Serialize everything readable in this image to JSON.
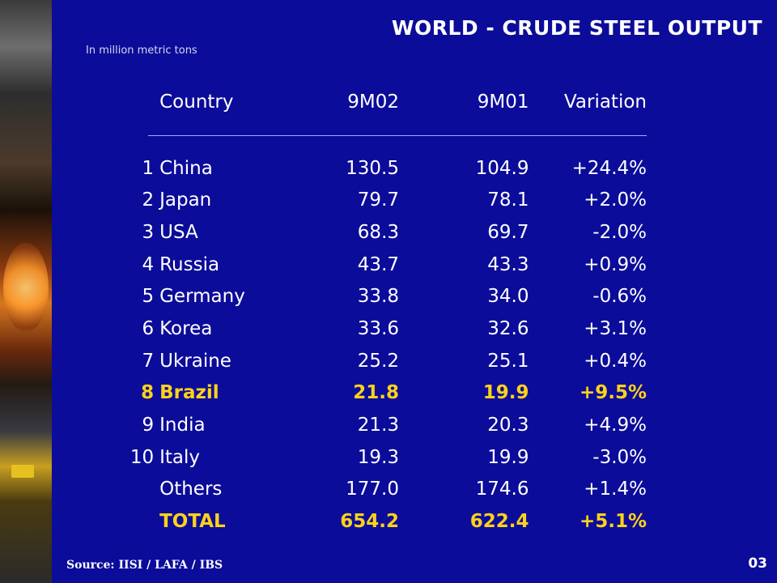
{
  "slide": {
    "title": "WORLD - CRUDE STEEL OUTPUT",
    "subtitle": "In million metric tons",
    "source": "Source: IISI / LAFA / IBS",
    "page_number": "03"
  },
  "table": {
    "headers": [
      "Country",
      "9M02",
      "9M01",
      "Variation"
    ],
    "rows": [
      {
        "rank": "1",
        "country": "China",
        "m02": "130.5",
        "m01": "104.9",
        "variation": "+24.4%"
      },
      {
        "rank": "2",
        "country": "Japan",
        "m02": "79.7",
        "m01": "78.1",
        "variation": "+2.0%"
      },
      {
        "rank": "3",
        "country": "USA",
        "m02": "68.3",
        "m01": "69.7",
        "variation": "-2.0%"
      },
      {
        "rank": "4",
        "country": "Russia",
        "m02": "43.7",
        "m01": "43.3",
        "variation": "+0.9%"
      },
      {
        "rank": "5",
        "country": "Germany",
        "m02": "33.8",
        "m01": "34.0",
        "variation": "-0.6%"
      },
      {
        "rank": "6",
        "country": "Korea",
        "m02": "33.6",
        "m01": "32.6",
        "variation": "+3.1%"
      },
      {
        "rank": "7",
        "country": "Ukraine",
        "m02": "25.2",
        "m01": "25.1",
        "variation": "+0.4%"
      },
      {
        "rank": "8",
        "country": "Brazil",
        "m02": "21.8",
        "m01": "19.9",
        "variation": "+9.5%"
      },
      {
        "rank": "9",
        "country": "India",
        "m02": "21.3",
        "m01": "20.3",
        "variation": "+4.9%"
      },
      {
        "rank": "10",
        "country": "Italy",
        "m02": "19.3",
        "m01": "19.9",
        "variation": "-3.0%"
      },
      {
        "rank": "",
        "country": "Others",
        "m02": "177.0",
        "m01": "174.6",
        "variation": "+1.4%"
      },
      {
        "rank": "",
        "country": "TOTAL",
        "m02": "654.2",
        "m01": "622.4",
        "variation": "+5.1%"
      }
    ]
  },
  "colors": {
    "background": "#0c0c9a",
    "highlight": "#ffd21a",
    "text": "#ffffff"
  }
}
